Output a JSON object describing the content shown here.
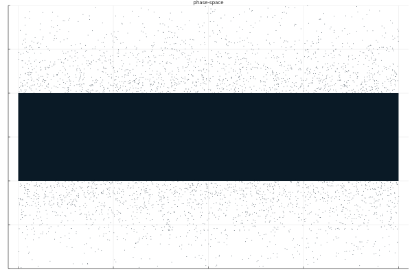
{
  "chart_data": {
    "type": "scatter",
    "title": "phase-space",
    "xlabel": "",
    "ylabel": "",
    "grid": true,
    "legend": "none",
    "xlim": [
      0,
      40
    ],
    "ylim": [
      -3,
      3
    ],
    "x_ticks": [
      0,
      10,
      20,
      30,
      40
    ],
    "y_ticks": [
      -3,
      -2,
      -1,
      0,
      1,
      2,
      3
    ],
    "series": [
      {
        "color": "#0a1a26",
        "distribution": "gaussian-band",
        "y_center": 0,
        "y_dense_halfwidth": 1.0,
        "y_spread": 3
      }
    ]
  }
}
